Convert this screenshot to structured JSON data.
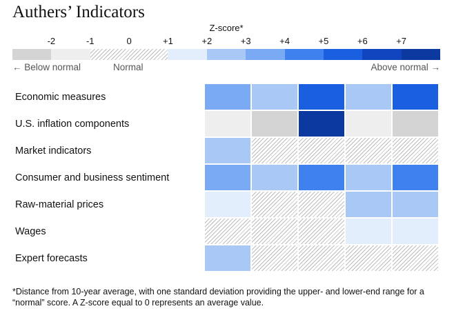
{
  "title": "Authers’ Indicators",
  "zscore_label": "Z-score*",
  "legend": {
    "ticks": [
      "-2",
      "-1",
      "0",
      "+1",
      "+2",
      "+3",
      "+4",
      "+5",
      "+6",
      "+7"
    ],
    "colors": [
      "#d4d4d4",
      "#eeeeee",
      "hatch",
      "hatch",
      "#e3eefc",
      "#a9c8f6",
      "#7aaaf3",
      "#3f81ef",
      "#1a5fe0",
      "#1145c0",
      "#0b39a0"
    ],
    "below_label": "← Below normal",
    "normal_label": "Normal",
    "above_label": "Above normal →"
  },
  "palette": {
    "hatch_line": "#bdbdbd",
    "text": "#111111",
    "muted_text": "#555555"
  },
  "chart_data": {
    "type": "heatmap",
    "title": "Authers’ Indicators",
    "colorbar_label": "Z-score*",
    "colorbar_ticks": [
      "-2",
      "-1",
      "0",
      "+1",
      "+2",
      "+3",
      "+4",
      "+5",
      "+6",
      "+7"
    ],
    "rows": [
      "Economic measures",
      "U.S. inflation components",
      "Market indicators",
      "Consumer and business sentiment",
      "Raw-material prices",
      "Wages",
      "Expert forecasts"
    ],
    "columns": 5,
    "cells": [
      [
        "#7aaaf3",
        "#a9c8f6",
        "#1a5fe0",
        "#a9c8f6",
        "#1a5fe0"
      ],
      [
        "#eeeeee",
        "#d4d4d4",
        "#0b39a0",
        "#eeeeee",
        "#d4d4d4"
      ],
      [
        "#a9c8f6",
        "hatch",
        "hatch",
        "hatch",
        "hatch"
      ],
      [
        "#7aaaf3",
        "#a9c8f6",
        "#3f81ef",
        "#a9c8f6",
        "#3f81ef"
      ],
      [
        "#e3eefc",
        "hatch",
        "hatch",
        "#a9c8f6",
        "#a9c8f6"
      ],
      [
        "hatch",
        "hatch",
        "hatch",
        "#e3eefc",
        "#e3eefc"
      ],
      [
        "#a9c8f6",
        "hatch",
        "hatch",
        "hatch",
        "hatch"
      ]
    ],
    "legend_placement": "top"
  },
  "footnote": "*Distance from 10-year average, with one standard deviation providing the upper- and lower-end range for a “normal” score. A Z-score equal to 0 represents an average value."
}
